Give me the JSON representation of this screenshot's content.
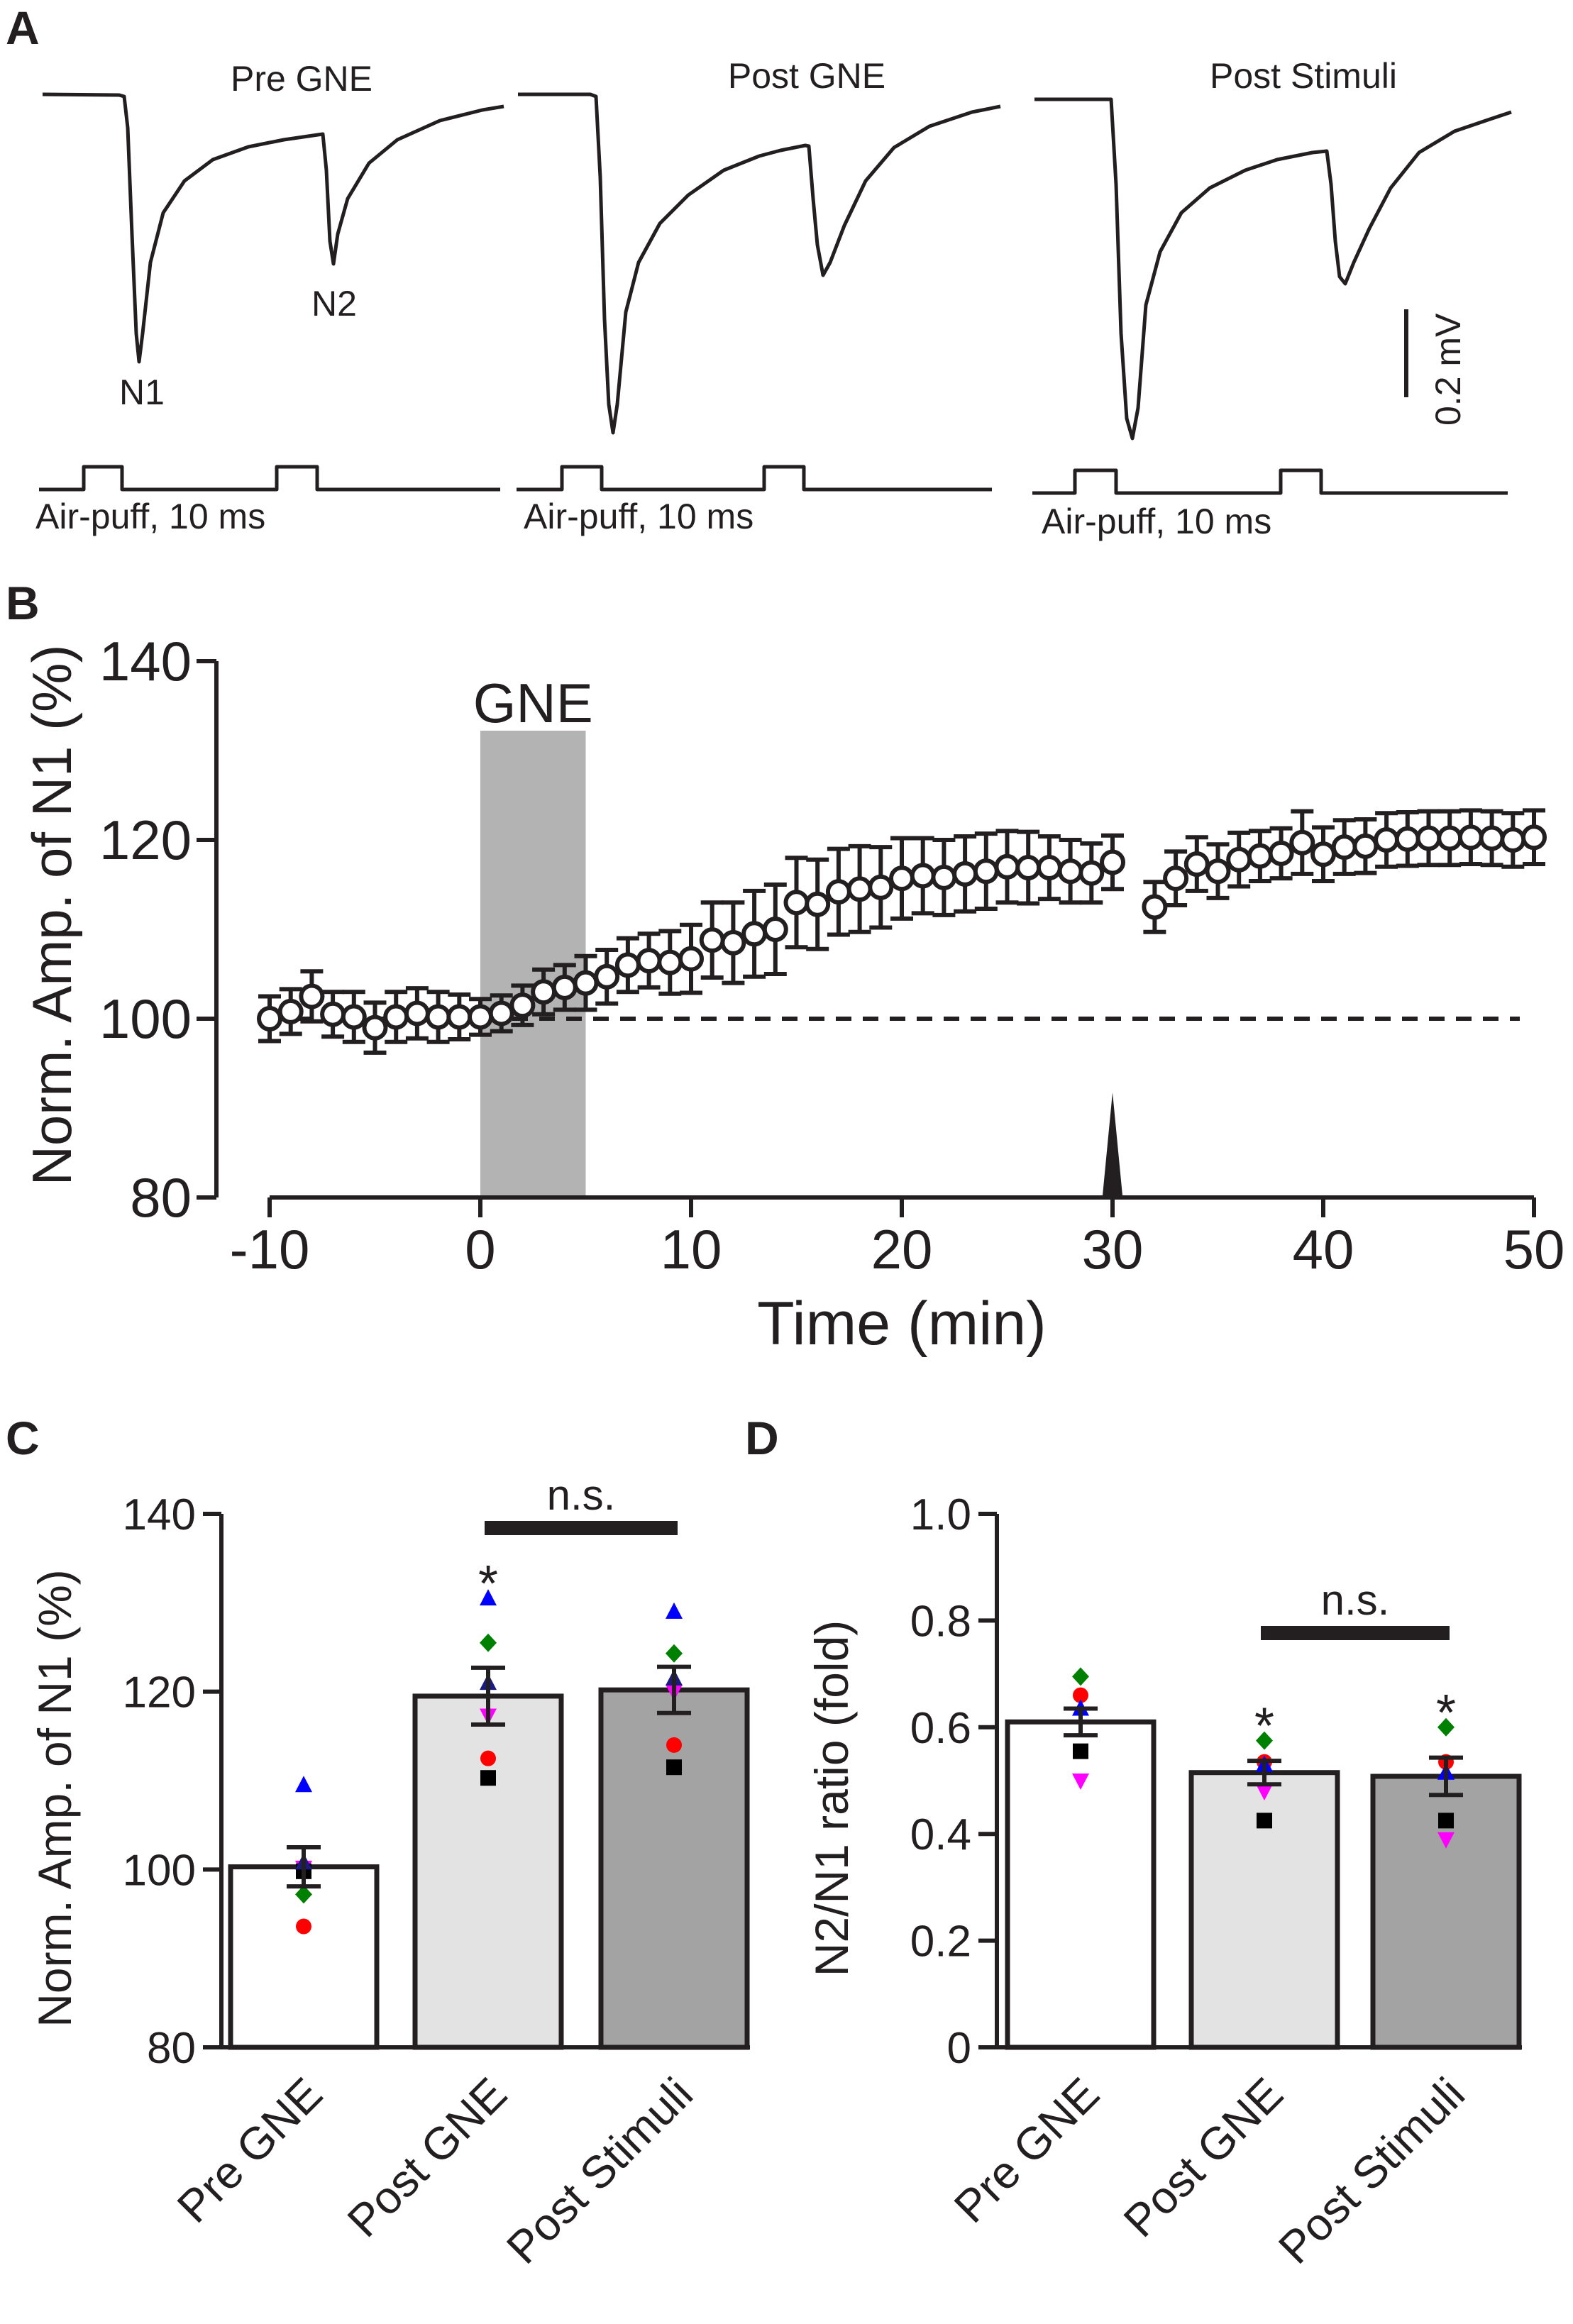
{
  "panels": {
    "a": "A",
    "b": "B",
    "c": "C",
    "d": "D"
  },
  "panel_a": {
    "conditions": [
      "Pre GNE",
      "Post GNE",
      "Post Stimuli"
    ],
    "peak_labels": {
      "n1": "N1",
      "n2": "N2"
    },
    "stim_label": "Air-puff, 10 ms",
    "scale_label": "0.2 mV",
    "n1_amplitude_rel": [
      1.0,
      1.19,
      1.2
    ],
    "n2_amplitude_rel": [
      0.53,
      0.52,
      0.51
    ]
  },
  "chart_data": [
    {
      "type": "scatter",
      "title": "",
      "xlabel": "Time (min)",
      "ylabel": "Norm. Amp. of N1 (%)",
      "xlim": [
        -10,
        50
      ],
      "ylim": [
        80,
        140
      ],
      "xticks": [
        "-10",
        "0",
        "10",
        "20",
        "30",
        "40",
        "50"
      ],
      "yticks": [
        "80",
        "100",
        "120",
        "140"
      ],
      "shaded_region": {
        "label": "GNE",
        "from": 0,
        "to": 5
      },
      "reference_line": 100,
      "stimulus_marker_x": 30,
      "series": [
        {
          "name": "N1 amplitude",
          "x": [
            -10,
            -9,
            -8,
            -7,
            -6,
            -5,
            -4,
            -3,
            -2,
            -1,
            0,
            1,
            2,
            3,
            4,
            5,
            6,
            7,
            8,
            9,
            10,
            11,
            12,
            13,
            14,
            15,
            16,
            17,
            18,
            19,
            20,
            21,
            22,
            23,
            24,
            25,
            26,
            27,
            28,
            29,
            30,
            32,
            33,
            34,
            35,
            36,
            37,
            38,
            39,
            40,
            41,
            42,
            43,
            44,
            45,
            46,
            47,
            48,
            49,
            50
          ],
          "y": [
            100,
            100.8,
            102.5,
            100.5,
            100.2,
            99,
            100.2,
            100.6,
            100.2,
            100.2,
            100.2,
            100.6,
            101.5,
            103,
            103.5,
            104,
            104.7,
            106,
            106.5,
            106.3,
            106.7,
            108.8,
            108.5,
            109.5,
            110,
            113,
            112.8,
            114.2,
            114.5,
            114.7,
            115.7,
            116,
            115.8,
            116.2,
            116.5,
            117,
            116.9,
            116.9,
            116.5,
            116.3,
            117.5,
            112.5,
            115.7,
            117.3,
            116.5,
            117.8,
            118.2,
            118.5,
            119.7,
            118.4,
            119.2,
            119.3,
            120,
            120.1,
            120.2,
            120.2,
            120.3,
            120.2,
            120,
            120.3
          ],
          "error": [
            2.5,
            2.5,
            2.8,
            2.5,
            2.8,
            2.8,
            2.8,
            2.8,
            2.8,
            2.5,
            2,
            2,
            2.2,
            2.5,
            2.5,
            3,
            3,
            3,
            3,
            3.5,
            3.8,
            4.2,
            4.5,
            4.8,
            5,
            5,
            5,
            4.8,
            4.8,
            4.5,
            4.5,
            4.2,
            4.2,
            4.2,
            4.2,
            4,
            4,
            3.5,
            3.5,
            3.3,
            3,
            2.8,
            3,
            3,
            3,
            3,
            2.8,
            2.8,
            3.5,
            3,
            3,
            3,
            3,
            3,
            3,
            3,
            3,
            3,
            3,
            3
          ]
        }
      ]
    },
    {
      "type": "bar",
      "title": "",
      "xlabel": "",
      "ylabel": "Norm. Amp. of N1 (%)",
      "ylim": [
        80,
        140
      ],
      "yticks": [
        "80",
        "100",
        "120",
        "140"
      ],
      "categories": [
        "Pre GNE",
        "Post GNE",
        "Post Stimuli"
      ],
      "values": [
        100.3,
        119.5,
        120.2
      ],
      "sem": [
        2.2,
        3.2,
        2.6
      ],
      "bar_colors": [
        "#ffffff",
        "#e3e3e3",
        "#a3a3a3"
      ],
      "significance": {
        "label": "n.s.",
        "between": [
          1,
          2
        ]
      },
      "asterisks": [
        "",
        "*",
        ""
      ],
      "individual_points": [
        {
          "color": "#0000ff",
          "marker": "triangle-up",
          "values": [
            109.5,
            130.5,
            129
          ]
        },
        {
          "color": "#008000",
          "marker": "diamond",
          "values": [
            97.2,
            125.5,
            124.3
          ]
        },
        {
          "color": "#ff00ff",
          "marker": "triangle-down",
          "values": [
            100.2,
            117.3,
            120
          ]
        },
        {
          "color": "#ff0000",
          "marker": "circle",
          "values": [
            93.6,
            112.5,
            114
          ]
        },
        {
          "color": "#000000",
          "marker": "square",
          "values": [
            99.8,
            110.3,
            111.5
          ]
        },
        {
          "color": "#1a1a80",
          "marker": "triangle-up",
          "values": [
            100.8,
            121,
            121.5
          ]
        }
      ]
    },
    {
      "type": "bar",
      "title": "",
      "xlabel": "",
      "ylabel": "N2/N1 ratio (fold)",
      "ylim": [
        0,
        1.0
      ],
      "yticks": [
        "0",
        "0.2",
        "0.4",
        "0.6",
        "0.8",
        "1.0"
      ],
      "categories": [
        "Pre GNE",
        "Post GNE",
        "Post Stimuli"
      ],
      "values": [
        0.61,
        0.515,
        0.508
      ],
      "sem": [
        0.025,
        0.022,
        0.035
      ],
      "bar_colors": [
        "#ffffff",
        "#e3e3e3",
        "#a3a3a3"
      ],
      "significance": {
        "label": "n.s.",
        "between": [
          1,
          2
        ]
      },
      "asterisks": [
        "",
        "*",
        "*"
      ],
      "individual_points": [
        {
          "color": "#008000",
          "marker": "diamond",
          "values": [
            0.695,
            0.575,
            0.6
          ]
        },
        {
          "color": "#ff0000",
          "marker": "circle",
          "values": [
            0.66,
            0.535,
            0.535
          ]
        },
        {
          "color": "#0000ff",
          "marker": "triangle-up",
          "values": [
            0.635,
            0.53,
            0.515
          ]
        },
        {
          "color": "#000000",
          "marker": "square",
          "values": [
            0.555,
            0.425,
            0.425
          ]
        },
        {
          "color": "#ff00ff",
          "marker": "triangle-down",
          "values": [
            0.5,
            0.48,
            0.39
          ]
        }
      ]
    }
  ]
}
